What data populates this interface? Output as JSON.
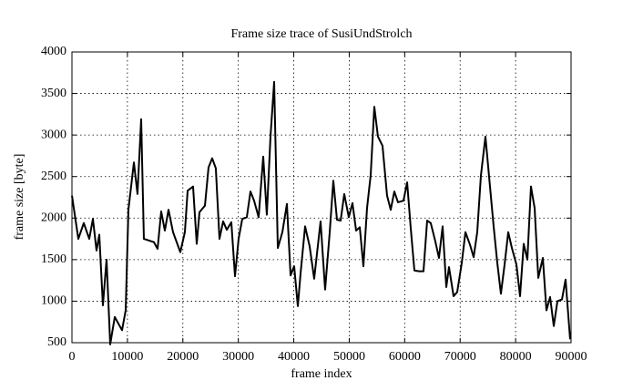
{
  "chart_data": {
    "type": "line",
    "title": "Frame size trace of SusiUndStrolch",
    "x_label": "frame index",
    "y_label": "frame size [byte]",
    "x": [
      0,
      1150,
      2130,
      3120,
      3780,
      4430,
      4930,
      5580,
      6240,
      6900,
      7720,
      9030,
      9690,
      10180,
      11170,
      11820,
      12480,
      12970,
      14780,
      15440,
      16090,
      16750,
      17410,
      18230,
      19540,
      20360,
      20860,
      21840,
      22500,
      22990,
      23980,
      24630,
      25290,
      25940,
      26600,
      27260,
      27920,
      28740,
      29400,
      30050,
      30710,
      31530,
      32190,
      32840,
      33660,
      34490,
      35140,
      35800,
      36460,
      37120,
      37940,
      38760,
      39420,
      40070,
      40730,
      41220,
      42040,
      42860,
      43680,
      44830,
      45650,
      46480,
      47130,
      47790,
      48450,
      49100,
      49920,
      50580,
      51240,
      51900,
      52550,
      53210,
      53870,
      54520,
      55180,
      56000,
      56820,
      57480,
      58130,
      58790,
      59780,
      60440,
      61090,
      61750,
      62570,
      63390,
      64050,
      64700,
      65520,
      66180,
      66840,
      67500,
      67990,
      68810,
      69470,
      70290,
      70950,
      71770,
      72430,
      73080,
      73740,
      74560,
      75380,
      76040,
      76700,
      77350,
      78010,
      78670,
      79330,
      80150,
      80800,
      81460,
      82120,
      82770,
      83430,
      84090,
      84910,
      85560,
      86220,
      86880,
      87540,
      88360,
      89010,
      89830
    ],
    "series": [
      {
        "name": "frame size",
        "color": "#000000",
        "values": [
          2270,
          1750,
          1940,
          1750,
          1990,
          1610,
          1800,
          950,
          1500,
          480,
          810,
          650,
          890,
          2100,
          2670,
          2290,
          3190,
          1750,
          1710,
          1630,
          2080,
          1850,
          2100,
          1830,
          1590,
          1830,
          2330,
          2380,
          1690,
          2070,
          2150,
          2610,
          2720,
          2600,
          1750,
          1960,
          1860,
          1950,
          1300,
          1750,
          1990,
          2010,
          2320,
          2210,
          2010,
          2740,
          2040,
          2980,
          3640,
          1640,
          1830,
          2170,
          1310,
          1420,
          940,
          1330,
          1900,
          1660,
          1270,
          1960,
          1140,
          1830,
          2450,
          1980,
          1970,
          2290,
          2010,
          2180,
          1850,
          1890,
          1420,
          2120,
          2520,
          3340,
          2980,
          2870,
          2270,
          2100,
          2320,
          2190,
          2210,
          2430,
          1880,
          1370,
          1360,
          1360,
          1970,
          1940,
          1720,
          1520,
          1900,
          1170,
          1410,
          1060,
          1110,
          1460,
          1830,
          1680,
          1530,
          1830,
          2510,
          2980,
          2380,
          1900,
          1460,
          1090,
          1440,
          1830,
          1640,
          1440,
          1060,
          1690,
          1500,
          2380,
          2120,
          1280,
          1520,
          890,
          1050,
          700,
          1000,
          1020,
          1260,
          540
        ]
      }
    ],
    "xlim": [
      0,
      90000
    ],
    "xticks": [
      0,
      10000,
      20000,
      30000,
      40000,
      50000,
      60000,
      70000,
      80000,
      90000
    ],
    "ylim": [
      500,
      4000
    ],
    "yticks": [
      500,
      1000,
      1500,
      2000,
      2500,
      3000,
      3500,
      4000
    ],
    "grid": true
  }
}
